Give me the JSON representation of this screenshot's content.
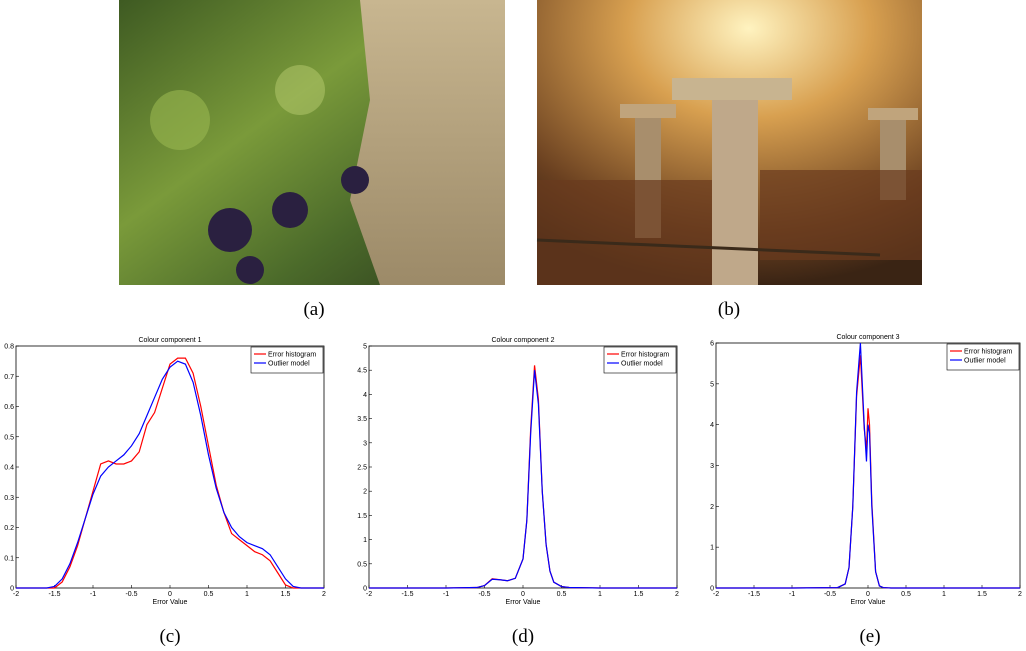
{
  "captions": [
    "(a)",
    "(b)",
    "(c)",
    "(d)",
    "(e)"
  ],
  "chart_data": [
    {
      "type": "line",
      "title": "Colour component 1",
      "x_label": "Error Value",
      "x": [
        -2,
        -1.9,
        -1.8,
        -1.7,
        -1.6,
        -1.5,
        -1.4,
        -1.3,
        -1.2,
        -1.1,
        -1.0,
        -0.9,
        -0.8,
        -0.7,
        -0.6,
        -0.5,
        -0.4,
        -0.3,
        -0.2,
        -0.1,
        0,
        0.1,
        0.2,
        0.3,
        0.4,
        0.5,
        0.6,
        0.7,
        0.8,
        0.9,
        1.0,
        1.1,
        1.2,
        1.3,
        1.4,
        1.5,
        1.6,
        1.7,
        1.8,
        1.9,
        2
      ],
      "series": [
        {
          "name": "Error histogram",
          "color": "#ff0000",
          "values": [
            0,
            0,
            0,
            0,
            0,
            0,
            0.02,
            0.07,
            0.14,
            0.23,
            0.32,
            0.41,
            0.42,
            0.41,
            0.41,
            0.42,
            0.45,
            0.54,
            0.58,
            0.66,
            0.74,
            0.76,
            0.76,
            0.71,
            0.6,
            0.47,
            0.34,
            0.25,
            0.18,
            0.16,
            0.14,
            0.12,
            0.11,
            0.09,
            0.05,
            0.01,
            0,
            0,
            0,
            0,
            0
          ]
        },
        {
          "name": "Outlier model",
          "color": "#0000ff",
          "values": [
            0,
            0,
            0,
            0,
            0,
            0.005,
            0.03,
            0.08,
            0.15,
            0.23,
            0.31,
            0.37,
            0.4,
            0.42,
            0.44,
            0.47,
            0.51,
            0.57,
            0.63,
            0.69,
            0.73,
            0.75,
            0.74,
            0.68,
            0.57,
            0.44,
            0.33,
            0.25,
            0.2,
            0.17,
            0.15,
            0.14,
            0.13,
            0.11,
            0.07,
            0.03,
            0.005,
            0,
            0,
            0,
            0
          ]
        }
      ],
      "xlim": [
        -2,
        2
      ],
      "xticks": [
        -2,
        -1.5,
        -1,
        -0.5,
        0,
        0.5,
        1,
        1.5,
        2
      ],
      "ylim": [
        0,
        0.8
      ],
      "yticks": [
        0,
        0.1,
        0.2,
        0.3,
        0.4,
        0.5,
        0.6,
        0.7,
        0.8
      ],
      "legend": "upper right"
    },
    {
      "type": "line",
      "title": "Colour component 2",
      "x_label": "Error Value",
      "x": [
        -2,
        -1,
        -0.6,
        -0.5,
        -0.4,
        -0.3,
        -0.2,
        -0.1,
        0,
        0.05,
        0.1,
        0.15,
        0.2,
        0.25,
        0.3,
        0.35,
        0.4,
        0.5,
        0.6,
        1,
        2
      ],
      "series": [
        {
          "name": "Error histogram",
          "color": "#ff0000",
          "values": [
            0,
            0,
            0.01,
            0.05,
            0.19,
            0.17,
            0.15,
            0.2,
            0.6,
            1.4,
            3.3,
            4.6,
            3.9,
            2.0,
            0.9,
            0.35,
            0.12,
            0.03,
            0.01,
            0,
            0
          ]
        },
        {
          "name": "Outlier model",
          "color": "#0000ff",
          "values": [
            0,
            0,
            0.01,
            0.05,
            0.18,
            0.17,
            0.15,
            0.2,
            0.6,
            1.4,
            3.2,
            4.5,
            3.8,
            2.0,
            0.9,
            0.35,
            0.12,
            0.03,
            0.01,
            0,
            0
          ]
        }
      ],
      "xlim": [
        -2,
        2
      ],
      "xticks": [
        -2,
        -1.5,
        -1,
        -0.5,
        0,
        0.5,
        1,
        1.5,
        2
      ],
      "ylim": [
        0,
        5
      ],
      "yticks": [
        0,
        0.5,
        1,
        1.5,
        2,
        2.5,
        3,
        3.5,
        4,
        4.5,
        5
      ],
      "legend": "upper right"
    },
    {
      "type": "line",
      "title": "Colour component 3",
      "x_label": "Error Value",
      "x": [
        -2,
        -1,
        -0.4,
        -0.3,
        -0.25,
        -0.2,
        -0.15,
        -0.1,
        -0.05,
        -0.02,
        0,
        0.02,
        0.05,
        0.1,
        0.15,
        0.2,
        0.3,
        1,
        2
      ],
      "series": [
        {
          "name": "Error histogram",
          "color": "#ff0000",
          "values": [
            0,
            0,
            0.01,
            0.1,
            0.5,
            2.0,
            4.7,
            5.7,
            3.9,
            3.4,
            4.4,
            4.0,
            2.1,
            0.4,
            0.05,
            0.01,
            0,
            0,
            0
          ]
        },
        {
          "name": "Outlier model",
          "color": "#0000ff",
          "values": [
            0,
            0,
            0.01,
            0.1,
            0.5,
            2.0,
            4.8,
            6.0,
            4.0,
            3.1,
            4.0,
            3.8,
            2.0,
            0.4,
            0.05,
            0.01,
            0,
            0,
            0
          ]
        }
      ],
      "xlim": [
        -2,
        2
      ],
      "xticks": [
        -2,
        -1.5,
        -1,
        -0.5,
        0,
        0.5,
        1,
        1.5,
        2
      ],
      "ylim": [
        0,
        6
      ],
      "yticks": [
        0,
        1,
        2,
        3,
        4,
        5,
        6
      ],
      "legend": "upper right"
    }
  ]
}
